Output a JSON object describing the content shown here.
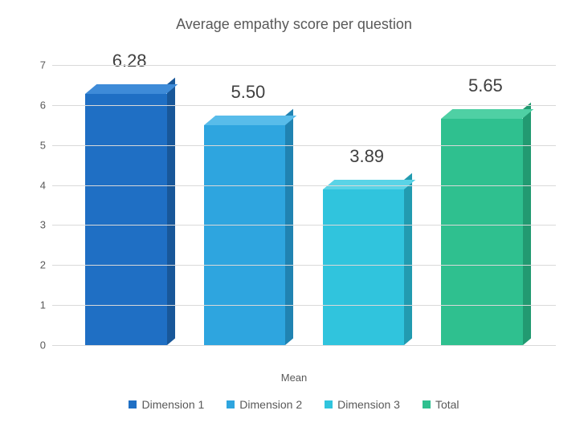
{
  "chart": {
    "type": "bar-3d",
    "title": "Average empathy score per question",
    "title_fontsize": 18,
    "title_color": "#595959",
    "xaxis_label": "Mean",
    "ylim": [
      0,
      7
    ],
    "ytick_step": 1,
    "yticks": [
      0,
      1,
      2,
      3,
      4,
      5,
      6,
      7
    ],
    "grid_color": "#d9d9d9",
    "background_color": "#ffffff",
    "axis_label_color": "#595959",
    "axis_label_fontsize": 13,
    "data_label_fontsize": 22,
    "data_label_color": "#404040",
    "bar_width_ratio": 0.78,
    "categories": [
      "Dimension 1",
      "Dimension 2",
      "Dimension 3",
      "Total"
    ],
    "values": [
      6.28,
      5.5,
      3.89,
      5.65
    ],
    "value_labels": [
      "6.28",
      "5.50",
      "3.89",
      "5.65"
    ],
    "bar_colors_front": [
      "#1f6fc4",
      "#2ea5df",
      "#30c4dd",
      "#2fc08f"
    ],
    "bar_colors_top": [
      "#3e8bd8",
      "#58bcea",
      "#5ad3e6",
      "#4fd0a4"
    ],
    "bar_colors_side": [
      "#185799",
      "#2083b2",
      "#229bb0",
      "#229a71"
    ],
    "legend_items": [
      {
        "label": "Dimension 1",
        "color": "#1f6fc4"
      },
      {
        "label": "Dimension 2",
        "color": "#2ea5df"
      },
      {
        "label": "Dimension 3",
        "color": "#30c4dd"
      },
      {
        "label": "Total",
        "color": "#2fc08f"
      }
    ]
  }
}
